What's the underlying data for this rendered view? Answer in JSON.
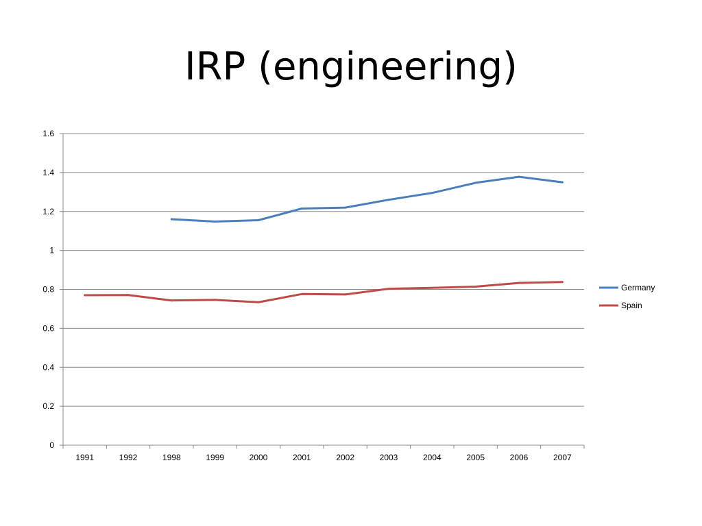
{
  "slide": {
    "title": "IRP (engineering)"
  },
  "chart_data": {
    "type": "line",
    "categories": [
      "1991",
      "1992",
      "1998",
      "1999",
      "2000",
      "2001",
      "2002",
      "2003",
      "2004",
      "2005",
      "2006",
      "2007"
    ],
    "series": [
      {
        "name": "Germany",
        "color": "#4a7ebb",
        "values": [
          null,
          null,
          1.16,
          1.148,
          1.155,
          1.215,
          1.22,
          1.26,
          1.295,
          1.347,
          1.378,
          1.35
        ]
      },
      {
        "name": "Spain",
        "color": "#be4b48",
        "values": [
          0.77,
          0.771,
          0.743,
          0.746,
          0.734,
          0.776,
          0.774,
          0.803,
          0.808,
          0.814,
          0.833,
          0.838
        ]
      }
    ],
    "ylim": [
      0,
      1.6
    ],
    "yticks": [
      "0",
      "0.2",
      "0.4",
      "0.6",
      "0.8",
      "1",
      "1.2",
      "1.4",
      "1.6"
    ],
    "ytick_values": [
      0,
      0.2,
      0.4,
      0.6,
      0.8,
      1,
      1.2,
      1.4,
      1.6
    ],
    "grid": true,
    "legend_position": "right"
  }
}
